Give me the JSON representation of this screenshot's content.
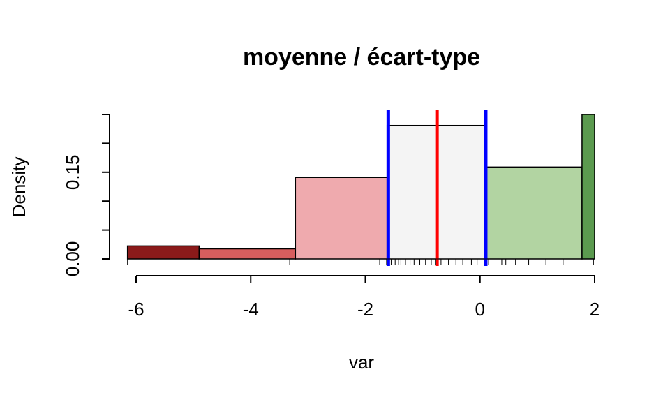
{
  "chart_data": {
    "type": "histogram",
    "title": "moyenne / écart-type",
    "xlabel": "var",
    "ylabel": "Density",
    "xlim": [
      -6.2,
      2.0
    ],
    "ylim": [
      0,
      0.25
    ],
    "x_ticks": [
      "-6",
      "-4",
      "-2",
      "0",
      "2"
    ],
    "x_tick_values": [
      -6,
      -4,
      -2,
      0,
      2
    ],
    "y_ticks": [
      "0.00",
      "0.15"
    ],
    "y_tick_values": [
      0.0,
      0.15
    ],
    "y_minor_ticks": [
      0.05,
      0.1,
      0.2,
      0.25
    ],
    "bins": [
      {
        "x0": -6.15,
        "x1": -4.9,
        "density": 0.0225,
        "color": "#8B1A1A"
      },
      {
        "x0": -4.9,
        "x1": -3.22,
        "density": 0.0175,
        "color": "#D85E5E"
      },
      {
        "x0": -3.22,
        "x1": -1.62,
        "density": 0.141,
        "color": "#EFAAAE"
      },
      {
        "x0": -1.62,
        "x1": 0.08,
        "density": 0.231,
        "color": "#F4F4F4"
      },
      {
        "x0": 0.08,
        "x1": 1.78,
        "density": 0.159,
        "color": "#B2D4A2"
      },
      {
        "x0": 1.78,
        "x1": 2.0,
        "density": 0.25,
        "color": "#5B9A4F"
      }
    ],
    "vlines": [
      {
        "x": -0.75,
        "color": "#FF0000",
        "role": "moyenne"
      },
      {
        "x": -1.6,
        "color": "#0000FF",
        "role": "moyenne - écart-type"
      },
      {
        "x": 0.1,
        "color": "#0000FF",
        "role": "moyenne + écart-type"
      }
    ],
    "rug": [
      -6.15,
      -3.32,
      -1.75,
      -1.63,
      -1.55,
      -1.48,
      -1.42,
      -1.38,
      -1.3,
      -1.22,
      -1.15,
      -1.05,
      -0.95,
      -0.85,
      -0.78,
      -0.68,
      -0.55,
      -0.42,
      -0.3,
      -0.15,
      -0.05,
      0.15,
      0.38,
      0.45,
      0.62,
      0.85,
      1.15,
      1.45,
      1.98
    ]
  }
}
